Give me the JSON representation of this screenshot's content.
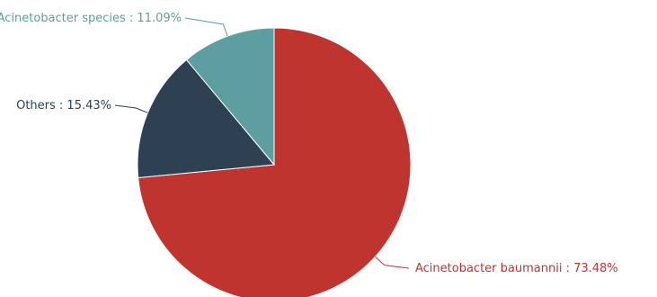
{
  "chart_data": {
    "type": "pie",
    "title": "",
    "slices": [
      {
        "name": "Acinetobacter  baumannii",
        "value": 73.48,
        "label": "Acinetobacter  baumannii : 73.48%",
        "color": "#c0342f"
      },
      {
        "name": "Others",
        "value": 15.43,
        "label": "Others : 15.43%",
        "color": "#2e4152"
      },
      {
        "name": "Acinetobacter  species",
        "value": 11.09,
        "label": "Acinetobacter  species : 11.09%",
        "color": "#5d9ea1"
      }
    ],
    "start_angle_deg": 90,
    "direction": "clockwise",
    "legend": "none"
  }
}
